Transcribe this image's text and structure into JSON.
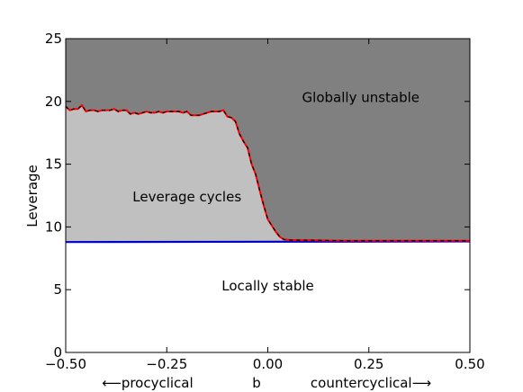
{
  "chart_data": {
    "type": "area",
    "xlabel": "b",
    "xlabel_left": "⟵procyclical",
    "xlabel_right": "countercyclical⟶",
    "ylabel": "Leverage",
    "xlim": [
      -0.5,
      0.5
    ],
    "ylim": [
      0,
      25
    ],
    "x_ticks": [
      -0.5,
      -0.25,
      0.0,
      0.25,
      0.5
    ],
    "x_tick_labels": [
      "−0.50",
      "−0.25",
      "0.00",
      "0.25",
      "0.50"
    ],
    "y_ticks": [
      0,
      5,
      10,
      15,
      20,
      25
    ],
    "y_tick_labels": [
      "0",
      "5",
      "10",
      "15",
      "20",
      "25"
    ],
    "grid": false,
    "regions": [
      {
        "label": "Globally unstable",
        "color": "#808080",
        "label_pos": [
          0.23,
          20.3
        ]
      },
      {
        "label": "Leverage cycles",
        "color": "#c0c0c0",
        "label_pos": [
          -0.2,
          12.4
        ]
      },
      {
        "label": "Locally stable",
        "color": "#ffffff",
        "label_pos": [
          0.0,
          5.3
        ]
      }
    ],
    "upper_boundary": {
      "color": "#ff0000",
      "style": "dashed-red-black",
      "x": [
        -0.5,
        -0.49,
        -0.48,
        -0.47,
        -0.46,
        -0.45,
        -0.44,
        -0.43,
        -0.42,
        -0.41,
        -0.4,
        -0.39,
        -0.38,
        -0.37,
        -0.36,
        -0.35,
        -0.34,
        -0.33,
        -0.32,
        -0.31,
        -0.3,
        -0.29,
        -0.28,
        -0.27,
        -0.26,
        -0.25,
        -0.24,
        -0.23,
        -0.22,
        -0.21,
        -0.2,
        -0.19,
        -0.18,
        -0.17,
        -0.16,
        -0.15,
        -0.14,
        -0.13,
        -0.12,
        -0.11,
        -0.1,
        -0.09,
        -0.08,
        -0.07,
        -0.06,
        -0.05,
        -0.04,
        -0.03,
        -0.02,
        -0.01,
        0.0,
        0.01,
        0.02,
        0.03,
        0.04,
        0.06,
        0.1,
        0.2,
        0.3,
        0.4,
        0.5
      ],
      "y": [
        19.6,
        19.3,
        19.4,
        19.4,
        19.7,
        19.2,
        19.3,
        19.3,
        19.2,
        19.3,
        19.3,
        19.3,
        19.4,
        19.2,
        19.3,
        19.3,
        19.0,
        19.1,
        19.0,
        19.1,
        19.2,
        19.1,
        19.1,
        19.2,
        19.1,
        19.2,
        19.2,
        19.2,
        19.2,
        19.1,
        19.2,
        18.9,
        18.9,
        18.9,
        19.0,
        19.1,
        19.2,
        19.2,
        19.2,
        19.3,
        18.8,
        18.7,
        18.4,
        17.4,
        16.8,
        16.3,
        15.0,
        14.2,
        12.9,
        11.7,
        10.6,
        10.1,
        9.6,
        9.2,
        9.0,
        8.95,
        8.95,
        8.9,
        8.9,
        8.9,
        8.9
      ]
    },
    "lower_boundary": {
      "color": "#0000cc",
      "x": [
        -0.5,
        0.5
      ],
      "y": [
        8.8,
        8.85
      ]
    }
  }
}
